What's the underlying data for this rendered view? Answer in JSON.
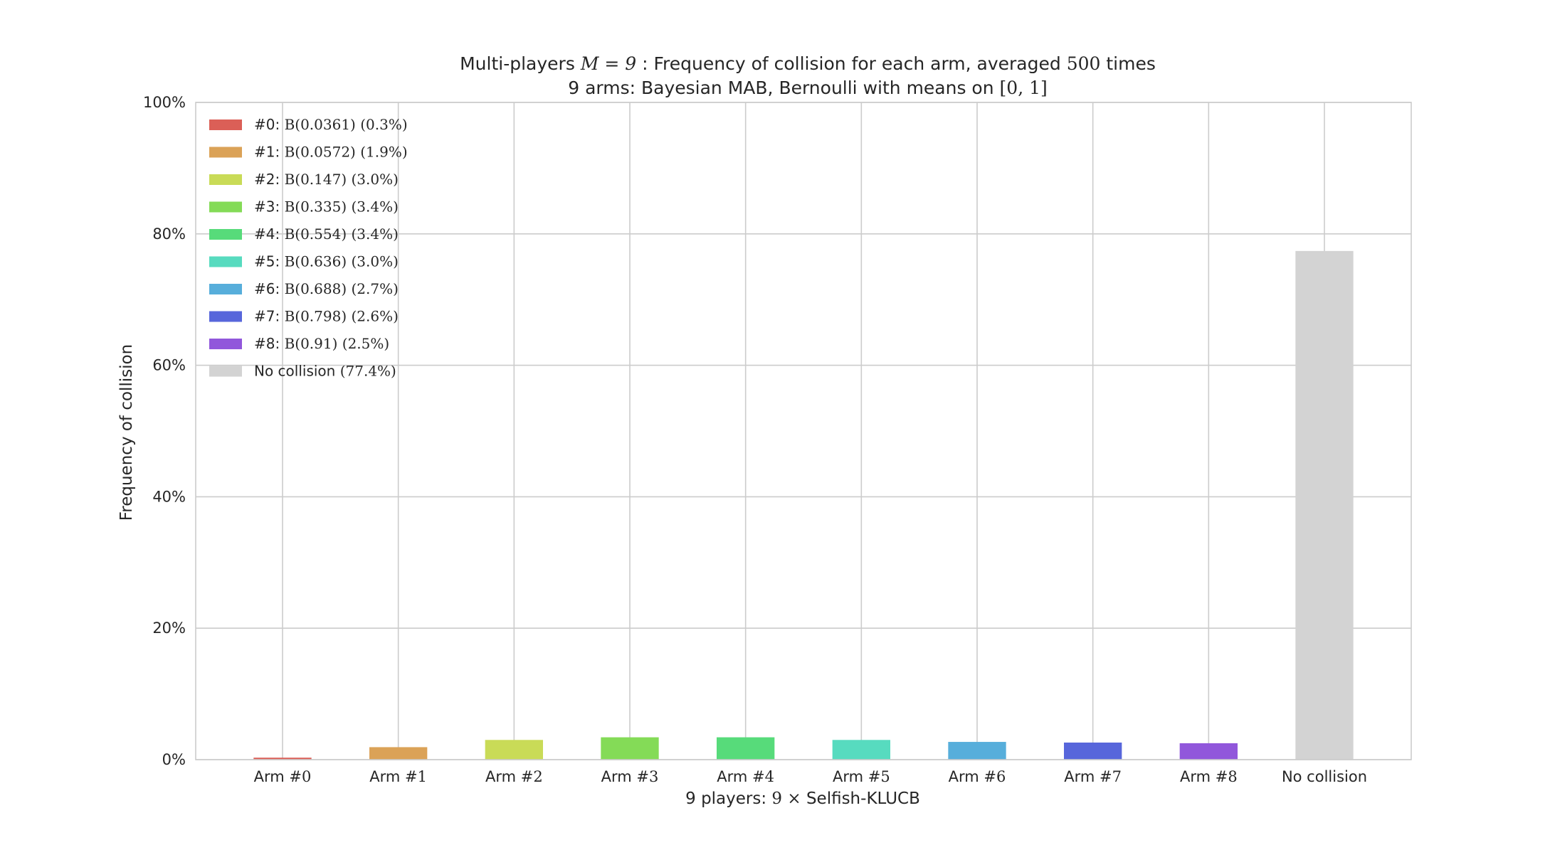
{
  "chart_data": {
    "type": "bar",
    "title_line1": {
      "pre": "Multi-players ",
      "math1": "M = 9",
      "mid": " : Frequency of collision for each arm, averaged ",
      "math2": "500",
      "post": " times"
    },
    "title_line2": {
      "pre": "9 arms: Bayesian MAB, Bernoulli with means on ",
      "math": "[0, 1]"
    },
    "xlabel": {
      "pre": "9 players: ",
      "math": "9 ×",
      "post": "  Selfish-KLUCB"
    },
    "ylabel": "Frequency of collision",
    "ylim": [
      0,
      1
    ],
    "yticks": [
      0,
      0.2,
      0.4,
      0.6,
      0.8,
      1.0
    ],
    "ytick_labels": [
      "0%",
      "20%",
      "40%",
      "60%",
      "80%",
      "100%"
    ],
    "grid": true,
    "legend_position": "upper-left",
    "categories": [
      {
        "pre": "Arm #",
        "math": "0"
      },
      {
        "pre": "Arm #",
        "math": "1"
      },
      {
        "pre": "Arm #",
        "math": "2"
      },
      {
        "pre": "Arm #",
        "math": "3"
      },
      {
        "pre": "Arm #",
        "math": "4"
      },
      {
        "pre": "Arm #",
        "math": "5"
      },
      {
        "pre": "Arm #",
        "math": "6"
      },
      {
        "pre": "Arm #",
        "math": "7"
      },
      {
        "pre": "Arm #",
        "math": "8"
      },
      {
        "pre": "No collision",
        "math": ""
      }
    ],
    "values": [
      0.003,
      0.019,
      0.03,
      0.034,
      0.034,
      0.03,
      0.027,
      0.026,
      0.025,
      0.774
    ],
    "colors": [
      "#db5f57",
      "#dba257",
      "#c9db57",
      "#84db57",
      "#57db7a",
      "#57dbbf",
      "#57aedb",
      "#5766db",
      "#9157db",
      "#d3d3d3"
    ],
    "legend": [
      {
        "pre": "#0: ",
        "math": "B(0.0361) (0.3%)"
      },
      {
        "pre": "#1: ",
        "math": "B(0.0572) (1.9%)"
      },
      {
        "pre": "#2: ",
        "math": "B(0.147) (3.0%)"
      },
      {
        "pre": "#3: ",
        "math": "B(0.335) (3.4%)"
      },
      {
        "pre": "#4: ",
        "math": "B(0.554) (3.4%)"
      },
      {
        "pre": "#5: ",
        "math": "B(0.636) (3.0%)"
      },
      {
        "pre": "#6: ",
        "math": "B(0.688) (2.7%)"
      },
      {
        "pre": "#7: ",
        "math": "B(0.798) (2.6%)"
      },
      {
        "pre": "#8: ",
        "math": "B(0.91) (2.5%)"
      },
      {
        "pre": "No collision ",
        "math": "(77.4%)"
      }
    ]
  }
}
